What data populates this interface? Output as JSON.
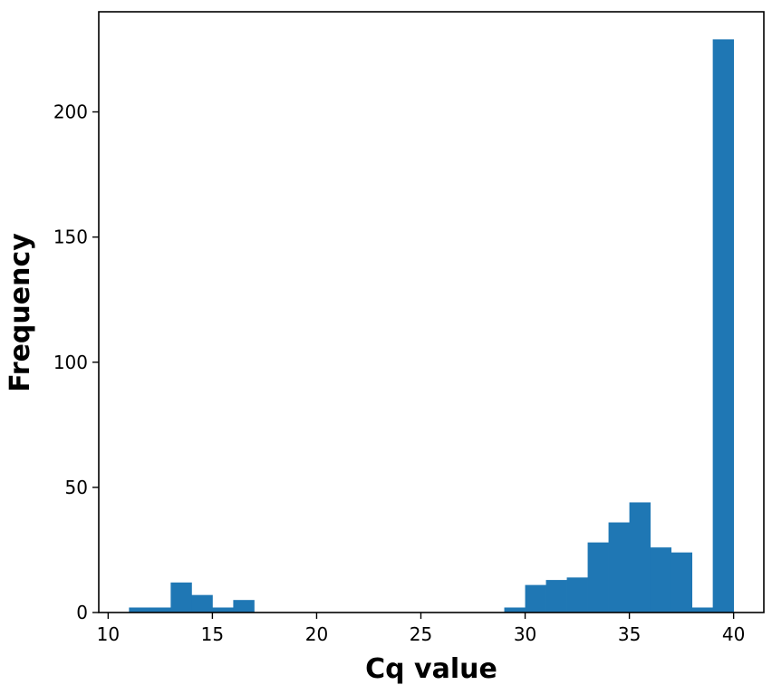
{
  "chart_data": {
    "type": "bar",
    "title": "",
    "xlabel": "Cq value",
    "ylabel": "Frequency",
    "xlim": [
      9.55,
      41.45
    ],
    "ylim": [
      0,
      240
    ],
    "xticks": [
      10,
      15,
      20,
      25,
      30,
      35,
      40
    ],
    "yticks": [
      0,
      50,
      100,
      150,
      200
    ],
    "grid": false,
    "legend": "none",
    "color": "#1f77b4",
    "bins": [
      {
        "x0": 11.0,
        "x1": 12.0,
        "value": 2
      },
      {
        "x0": 12.0,
        "x1": 13.0,
        "value": 2
      },
      {
        "x0": 13.0,
        "x1": 14.0,
        "value": 12
      },
      {
        "x0": 14.0,
        "x1": 15.0,
        "value": 7
      },
      {
        "x0": 15.0,
        "x1": 16.0,
        "value": 2
      },
      {
        "x0": 16.0,
        "x1": 17.0,
        "value": 5
      },
      {
        "x0": 17.0,
        "x1": 18.0,
        "value": 0
      },
      {
        "x0": 18.0,
        "x1": 19.0,
        "value": 0
      },
      {
        "x0": 19.0,
        "x1": 20.0,
        "value": 0
      },
      {
        "x0": 20.0,
        "x1": 21.0,
        "value": 0
      },
      {
        "x0": 21.0,
        "x1": 22.0,
        "value": 0
      },
      {
        "x0": 22.0,
        "x1": 23.0,
        "value": 0
      },
      {
        "x0": 23.0,
        "x1": 24.0,
        "value": 0
      },
      {
        "x0": 24.0,
        "x1": 25.0,
        "value": 0
      },
      {
        "x0": 25.0,
        "x1": 26.0,
        "value": 0
      },
      {
        "x0": 26.0,
        "x1": 27.0,
        "value": 0
      },
      {
        "x0": 27.0,
        "x1": 28.0,
        "value": 0
      },
      {
        "x0": 28.0,
        "x1": 29.0,
        "value": 0
      },
      {
        "x0": 29.0,
        "x1": 30.0,
        "value": 2
      },
      {
        "x0": 30.0,
        "x1": 31.0,
        "value": 11
      },
      {
        "x0": 31.0,
        "x1": 32.0,
        "value": 13
      },
      {
        "x0": 32.0,
        "x1": 33.0,
        "value": 14
      },
      {
        "x0": 33.0,
        "x1": 34.0,
        "value": 28
      },
      {
        "x0": 34.0,
        "x1": 35.0,
        "value": 36
      },
      {
        "x0": 35.0,
        "x1": 36.0,
        "value": 44
      },
      {
        "x0": 36.0,
        "x1": 37.0,
        "value": 26
      },
      {
        "x0": 37.0,
        "x1": 38.0,
        "value": 24
      },
      {
        "x0": 38.0,
        "x1": 39.0,
        "value": 2
      },
      {
        "x0": 39.0,
        "x1": 40.0,
        "value": 229
      }
    ]
  }
}
